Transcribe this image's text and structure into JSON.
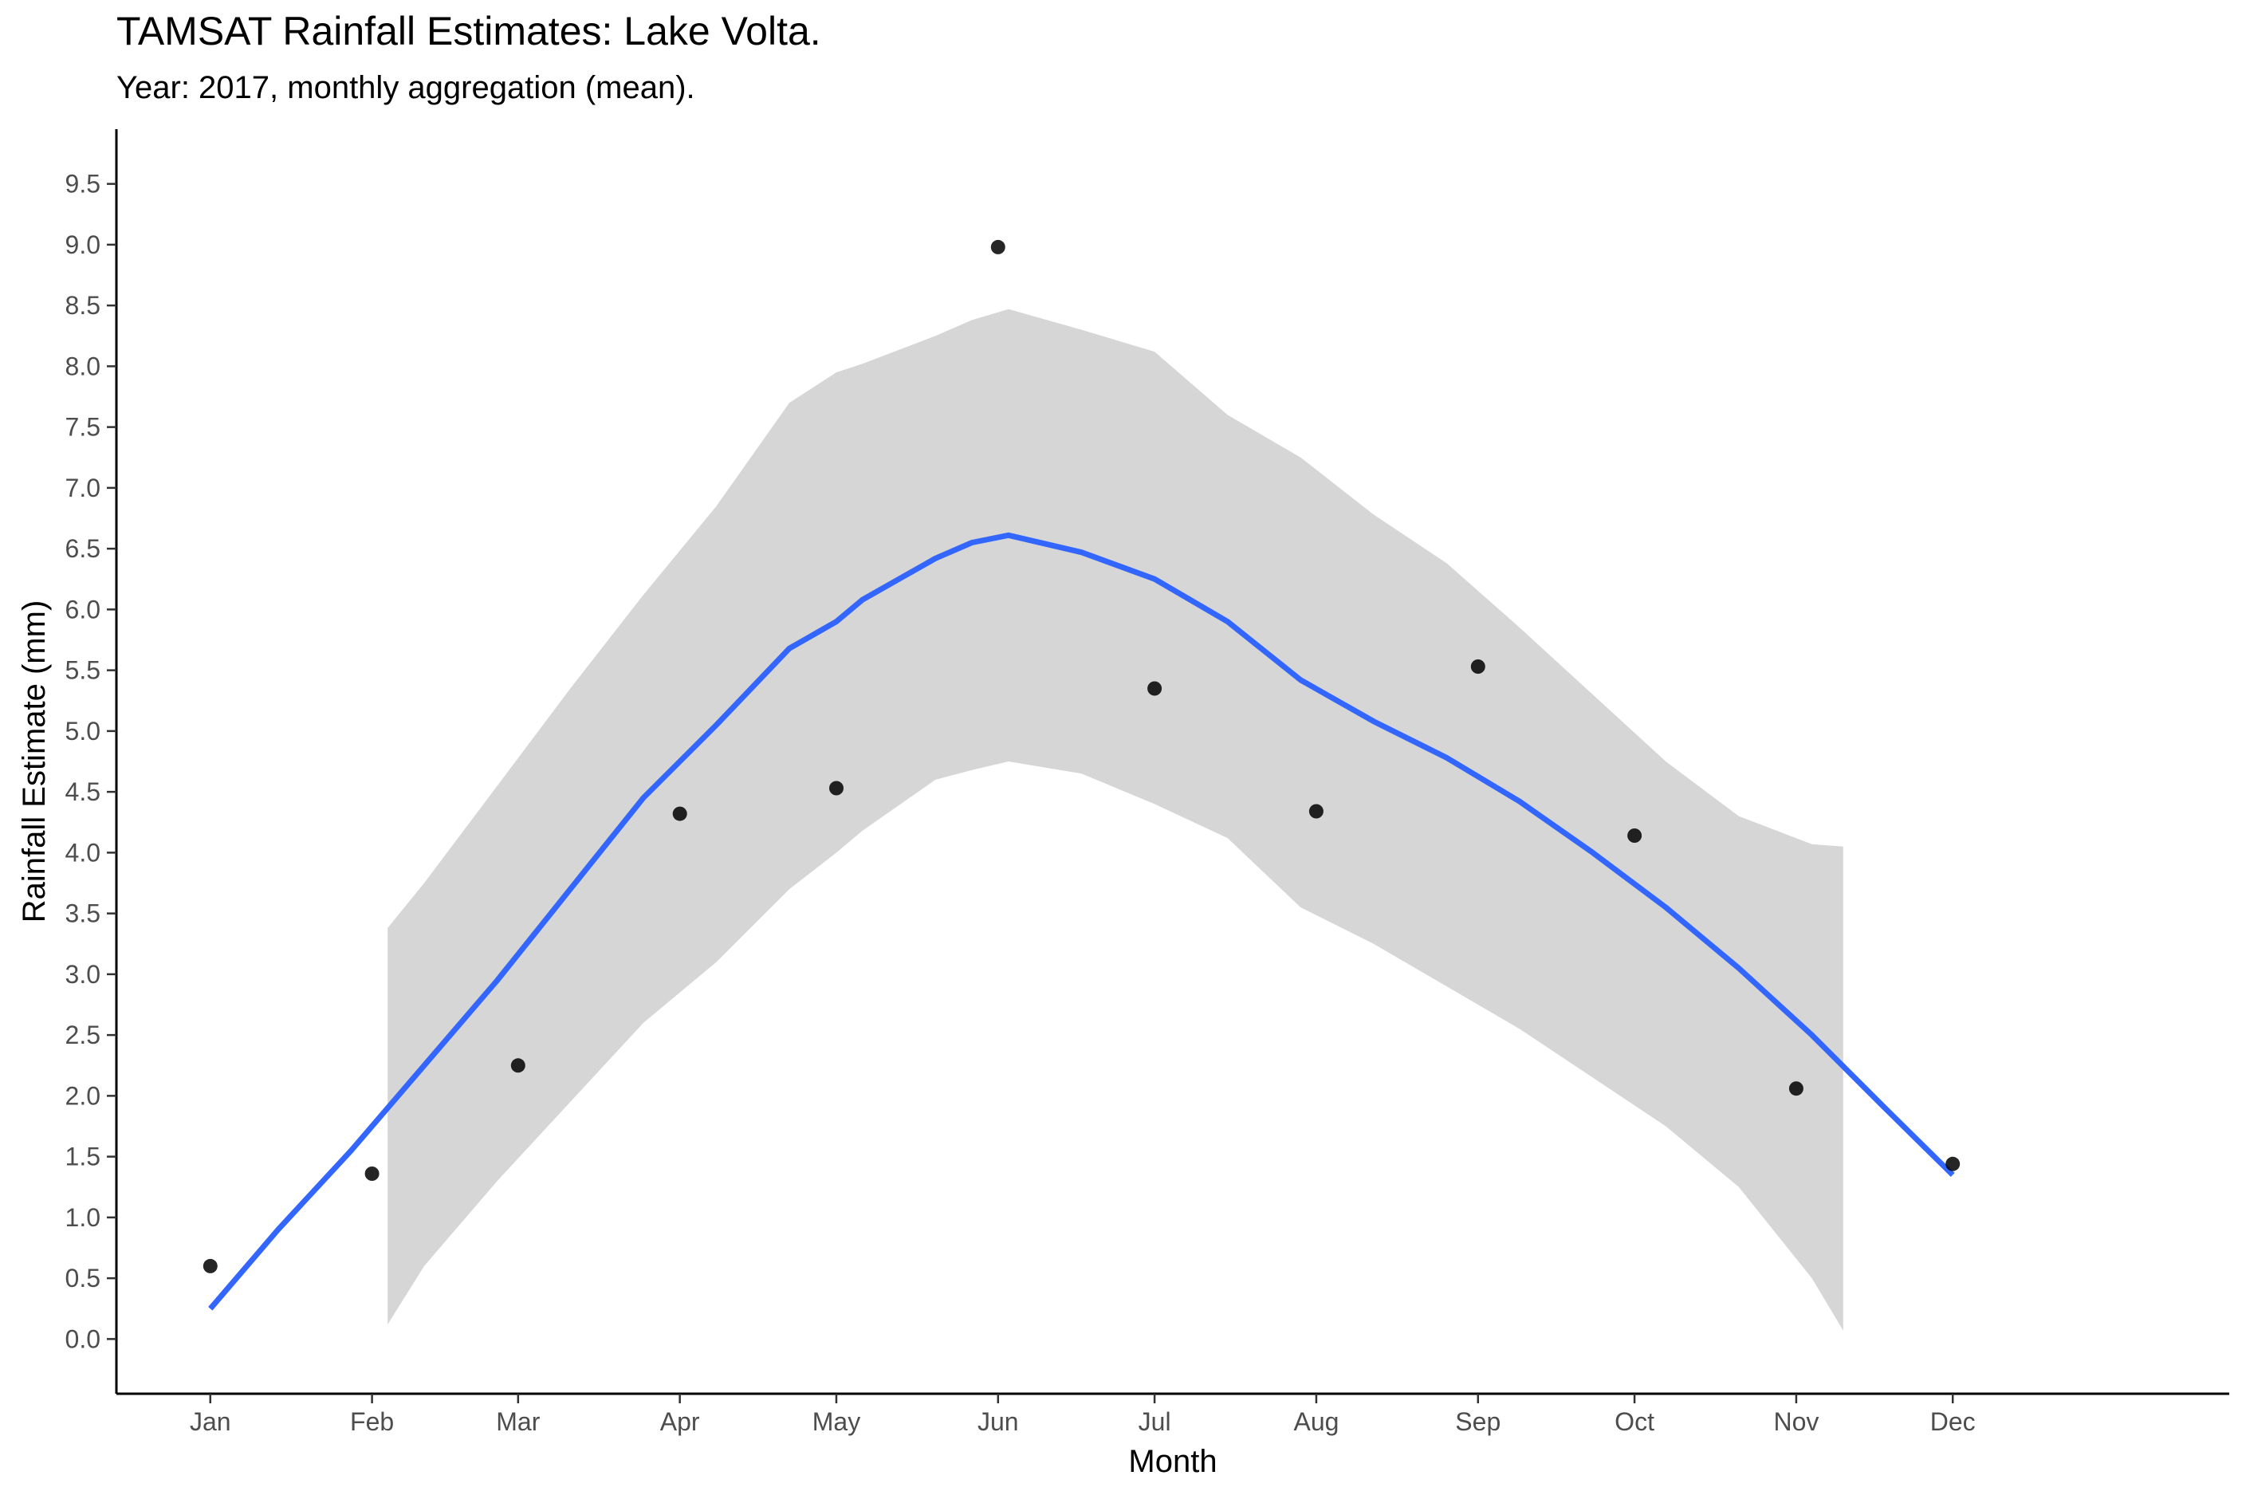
{
  "chart_data": {
    "type": "scatter",
    "title": "TAMSAT Rainfall Estimates: Lake Volta.",
    "subtitle": "Year: 2017, monthly aggregation (mean).",
    "xlabel": "Month",
    "ylabel": "Rainfall Estimate (mm)",
    "categories": [
      "Jan",
      "Feb",
      "Mar",
      "Apr",
      "May",
      "Jun",
      "Jul",
      "Aug",
      "Sep",
      "Oct",
      "Nov",
      "Dec"
    ],
    "x_day_of_year": [
      1,
      32,
      60,
      91,
      121,
      152,
      182,
      213,
      244,
      274,
      305,
      335
    ],
    "ylim": [
      -0.45,
      9.95
    ],
    "xlim": [
      -17,
      388
    ],
    "yticks": [
      0.0,
      0.5,
      1.0,
      1.5,
      2.0,
      2.5,
      3.0,
      3.5,
      4.0,
      4.5,
      5.0,
      5.5,
      6.0,
      6.5,
      7.0,
      7.5,
      8.0,
      8.5,
      9.0,
      9.5
    ],
    "grid": false,
    "legend": "none",
    "points": [
      {
        "month": "Jan",
        "x": 1,
        "y": 0.6
      },
      {
        "month": "Feb",
        "x": 32,
        "y": 1.36
      },
      {
        "month": "Mar",
        "x": 60,
        "y": 2.25
      },
      {
        "month": "Apr",
        "x": 91,
        "y": 4.32
      },
      {
        "month": "May",
        "x": 121,
        "y": 4.53
      },
      {
        "month": "Jun",
        "x": 152,
        "y": 8.98
      },
      {
        "month": "Jul",
        "x": 182,
        "y": 5.35
      },
      {
        "month": "Aug",
        "x": 213,
        "y": 4.34
      },
      {
        "month": "Sep",
        "x": 244,
        "y": 5.53
      },
      {
        "month": "Oct",
        "x": 274,
        "y": 4.14
      },
      {
        "month": "Nov",
        "x": 305,
        "y": 2.06
      },
      {
        "month": "Dec",
        "x": 335,
        "y": 1.44
      }
    ],
    "smooth": {
      "method": "loess",
      "x": [
        1,
        14,
        28,
        42,
        56,
        70,
        84,
        98,
        112,
        121,
        126,
        140,
        147,
        154,
        168,
        182,
        196,
        210,
        224,
        238,
        252,
        266,
        280,
        294,
        308,
        322,
        335
      ],
      "y": [
        0.25,
        0.9,
        1.55,
        2.25,
        2.95,
        3.7,
        4.45,
        5.05,
        5.68,
        5.9,
        6.08,
        6.42,
        6.55,
        6.61,
        6.47,
        6.25,
        5.9,
        5.42,
        5.08,
        4.78,
        4.42,
        4.0,
        3.55,
        3.05,
        2.5,
        1.9,
        1.35
      ]
    },
    "ribbon": {
      "x": [
        35,
        42,
        56,
        70,
        84,
        98,
        112,
        121,
        126,
        140,
        147,
        154,
        168,
        182,
        196,
        210,
        224,
        238,
        252,
        266,
        280,
        294,
        308,
        314
      ],
      "ymin": [
        0.12,
        0.6,
        1.3,
        1.95,
        2.6,
        3.1,
        3.7,
        4.0,
        4.18,
        4.6,
        4.68,
        4.75,
        4.65,
        4.4,
        4.12,
        3.55,
        3.25,
        2.9,
        2.55,
        2.15,
        1.75,
        1.25,
        0.5,
        0.07
      ],
      "ymax": [
        3.38,
        3.75,
        4.55,
        5.35,
        6.12,
        6.85,
        7.7,
        7.95,
        8.02,
        8.25,
        8.38,
        8.47,
        8.3,
        8.12,
        7.6,
        7.25,
        6.78,
        6.38,
        5.85,
        5.3,
        4.75,
        4.3,
        4.07,
        4.05
      ]
    },
    "colors": {
      "line": "#3366FF",
      "ribbon": "#d6d6d6",
      "points": "#000000",
      "axis": "#000000",
      "tick_label": "#4d4d4d"
    }
  }
}
